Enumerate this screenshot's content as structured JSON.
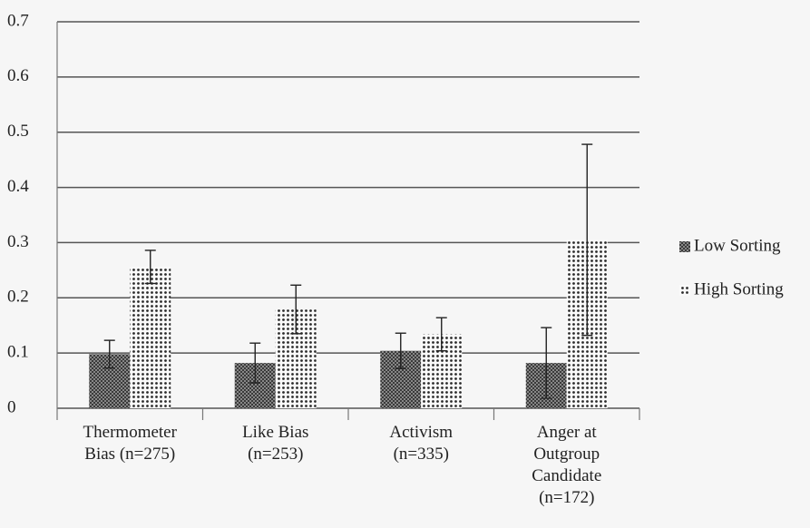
{
  "chart_data": {
    "type": "bar",
    "categories": [
      "Thermometer Bias (n=275)",
      "Like Bias (n=253)",
      "Activism (n=335)",
      "Anger at Outgroup Candidate (n=172)"
    ],
    "series": [
      {
        "name": "Low Sorting",
        "color": "#3a3a3a",
        "values": [
          0.098,
          0.082,
          0.104,
          0.082
        ],
        "errors": [
          0.025,
          0.036,
          0.032,
          0.064
        ]
      },
      {
        "name": "High Sorting",
        "color": "#2a2a2a",
        "values": [
          0.256,
          0.179,
          0.134,
          0.305
        ],
        "errors": [
          0.03,
          0.044,
          0.03,
          0.173
        ]
      }
    ],
    "ylim": [
      0,
      0.7
    ],
    "yticks": [
      0,
      0.1,
      0.2,
      0.3,
      0.4,
      0.5,
      0.6,
      0.7
    ],
    "grid": true,
    "legend": "right"
  }
}
